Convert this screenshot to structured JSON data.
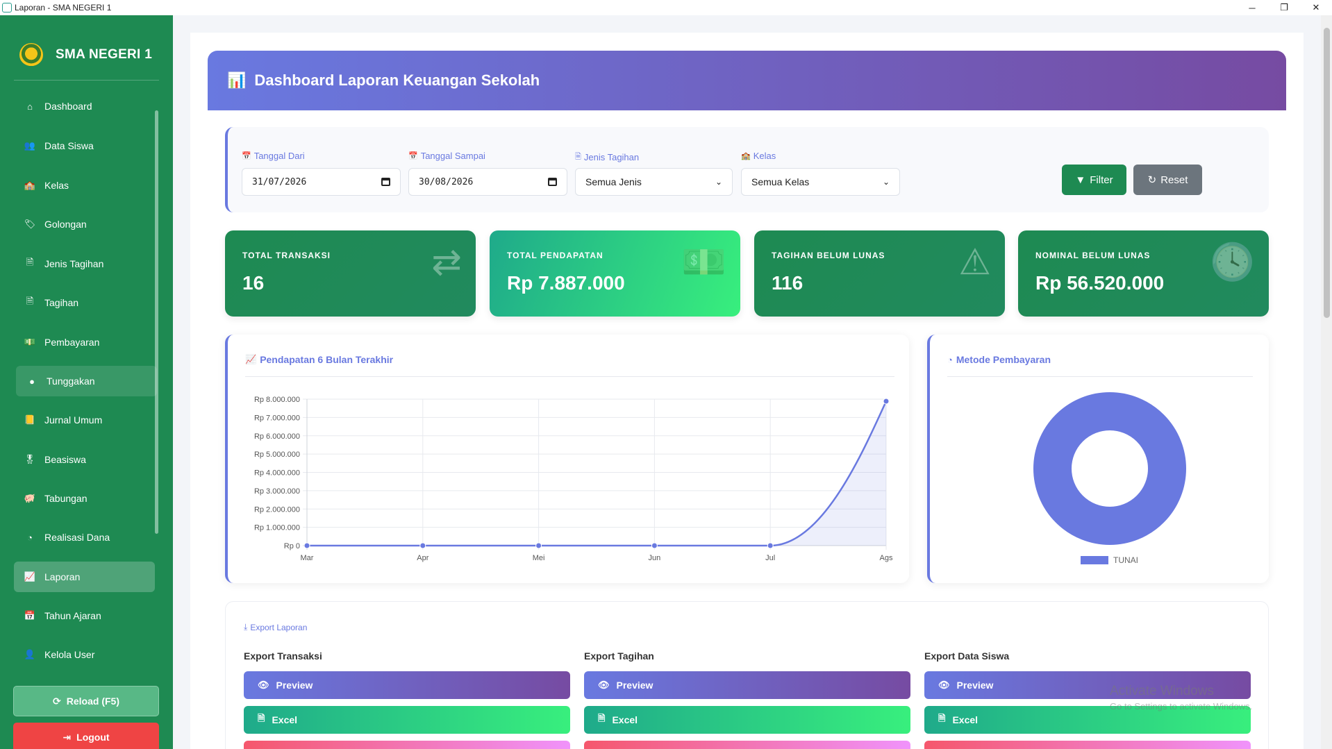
{
  "window": {
    "title": "Laporan - SMA NEGERI 1",
    "minimize": "─",
    "maximize": "❐",
    "close": "✕"
  },
  "sidebar": {
    "brand": "SMA NEGERI 1",
    "items": [
      {
        "label": "Dashboard",
        "icon": "home-icon",
        "glyph": "⌂"
      },
      {
        "label": "Data Siswa",
        "icon": "users-icon",
        "glyph": "👥"
      },
      {
        "label": "Kelas",
        "icon": "school-icon",
        "glyph": "🏫"
      },
      {
        "label": "Golongan",
        "icon": "tag-icon",
        "glyph": "🏷"
      },
      {
        "label": "Jenis Tagihan",
        "icon": "file-icon",
        "glyph": "🗎"
      },
      {
        "label": "Tagihan",
        "icon": "invoice-icon",
        "glyph": "🗎"
      },
      {
        "label": "Pembayaran",
        "icon": "money-icon",
        "glyph": "💵"
      },
      {
        "label": "Tunggakan",
        "icon": "alert-circle-icon",
        "glyph": "●"
      },
      {
        "label": "Jurnal Umum",
        "icon": "book-icon",
        "glyph": "📒"
      },
      {
        "label": "Beasiswa",
        "icon": "award-icon",
        "glyph": "🎖"
      },
      {
        "label": "Tabungan",
        "icon": "piggy-bank-icon",
        "glyph": "🐖"
      },
      {
        "label": "Realisasi Dana",
        "icon": "pie-chart-icon",
        "glyph": "◔"
      },
      {
        "label": "Laporan",
        "icon": "chart-line-icon",
        "glyph": "📈"
      },
      {
        "label": "Tahun Ajaran",
        "icon": "calendar-icon",
        "glyph": "📅"
      },
      {
        "label": "Kelola User",
        "icon": "user-gear-icon",
        "glyph": "👤"
      }
    ],
    "active_index": 12,
    "hover_index": 7,
    "reload_label": "Reload (F5)",
    "logout_label": "Logout"
  },
  "header": {
    "title": "Dashboard Laporan Keuangan Sekolah"
  },
  "filters": {
    "date_from_label": "Tanggal Dari",
    "date_from_value": "31/07/2026",
    "date_to_label": "Tanggal Sampai",
    "date_to_value": "30/08/2026",
    "jenis_label": "Jenis Tagihan",
    "jenis_value": "Semua Jenis",
    "kelas_label": "Kelas",
    "kelas_value": "Semua Kelas",
    "filter_button": "Filter",
    "reset_button": "Reset"
  },
  "stats": [
    {
      "label": "TOTAL TRANSAKSI",
      "value": "16",
      "icon": "exchange-icon"
    },
    {
      "label": "TOTAL PENDAPATAN",
      "value": "Rp 7.887.000",
      "icon": "cash-icon"
    },
    {
      "label": "TAGIHAN BELUM LUNAS",
      "value": "116",
      "icon": "warning-icon"
    },
    {
      "label": "NOMINAL BELUM LUNAS",
      "value": "Rp 56.520.000",
      "icon": "clock-icon"
    }
  ],
  "line_chart_title": "Pendapatan 6 Bulan Terakhir",
  "pie_chart_title": "Metode Pembayaran",
  "chart_data": [
    {
      "type": "line",
      "title": "Pendapatan 6 Bulan Terakhir",
      "categories": [
        "Mar",
        "Apr",
        "Mei",
        "Jun",
        "Jul",
        "Ags"
      ],
      "series": [
        {
          "values": [
            0,
            0,
            0,
            0,
            0,
            7887000
          ],
          "color": "#6979e0"
        }
      ],
      "ylim": [
        0,
        8000000
      ],
      "yticks": [
        "Rp 0",
        "Rp 1.000.000",
        "Rp 2.000.000",
        "Rp 3.000.000",
        "Rp 4.000.000",
        "Rp 5.000.000",
        "Rp 6.000.000",
        "Rp 7.000.000",
        "Rp 8.000.000"
      ],
      "grid": true,
      "fill": true
    },
    {
      "type": "pie",
      "title": "Metode Pembayaran",
      "labels": [
        "TUNAI"
      ],
      "values": [
        100
      ],
      "colors": [
        "#6979e0"
      ],
      "donut": true,
      "legend": "bottom"
    }
  ],
  "export": {
    "title": "Export Laporan",
    "columns": [
      {
        "title": "Export Transaksi",
        "preview": "Preview",
        "excel": "Excel"
      },
      {
        "title": "Export Tagihan",
        "preview": "Preview",
        "excel": "Excel"
      },
      {
        "title": "Export Data Siswa",
        "preview": "Preview",
        "excel": "Excel"
      }
    ]
  },
  "watermark": {
    "title": "Activate Windows",
    "subtitle": "Go to Settings to activate Windows."
  },
  "colors": {
    "sidebar": "#1e8a52",
    "accent": "#6979e0",
    "danger": "#ef4444"
  }
}
